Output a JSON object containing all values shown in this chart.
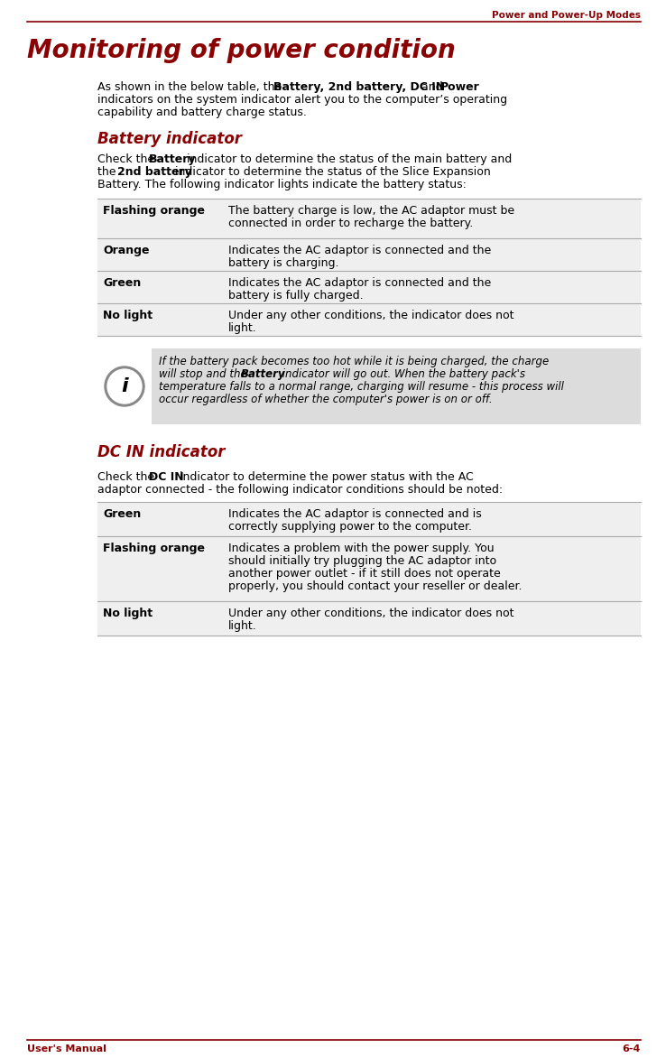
{
  "page_header_right": "Power and Power-Up Modes",
  "page_footer_left": "User's Manual",
  "page_footer_right": "6-4",
  "dark_red": "#8B0000",
  "black": "#000000",
  "table_line_color": "#AAAAAA",
  "note_bg": "#E0E0E0",
  "main_title": "Monitoring of power condition",
  "section1_title": "Battery indicator",
  "section2_title": "DC IN indicator",
  "battery_table": [
    [
      "Flashing orange",
      "The battery charge is low, the AC adaptor must be\nconnected in order to recharge the battery."
    ],
    [
      "Orange",
      "Indicates the AC adaptor is connected and the\nbattery is charging."
    ],
    [
      "Green",
      "Indicates the AC adaptor is connected and the\nbattery is fully charged."
    ],
    [
      "No light",
      "Under any other conditions, the indicator does not\nlight."
    ]
  ],
  "dc_table": [
    [
      "Green",
      "Indicates the AC adaptor is connected and is\ncorrectly supplying power to the computer."
    ],
    [
      "Flashing orange",
      "Indicates a problem with the power supply. You\nshould initially try plugging the AC adaptor into\nanother power outlet - if it still does not operate\nproperly, you should contact your reseller or dealer."
    ],
    [
      "No light",
      "Under any other conditions, the indicator does not\nlight."
    ]
  ],
  "bg_color": "#FFFFFF",
  "fig_width": 7.38,
  "fig_height": 11.72,
  "dpi": 100
}
